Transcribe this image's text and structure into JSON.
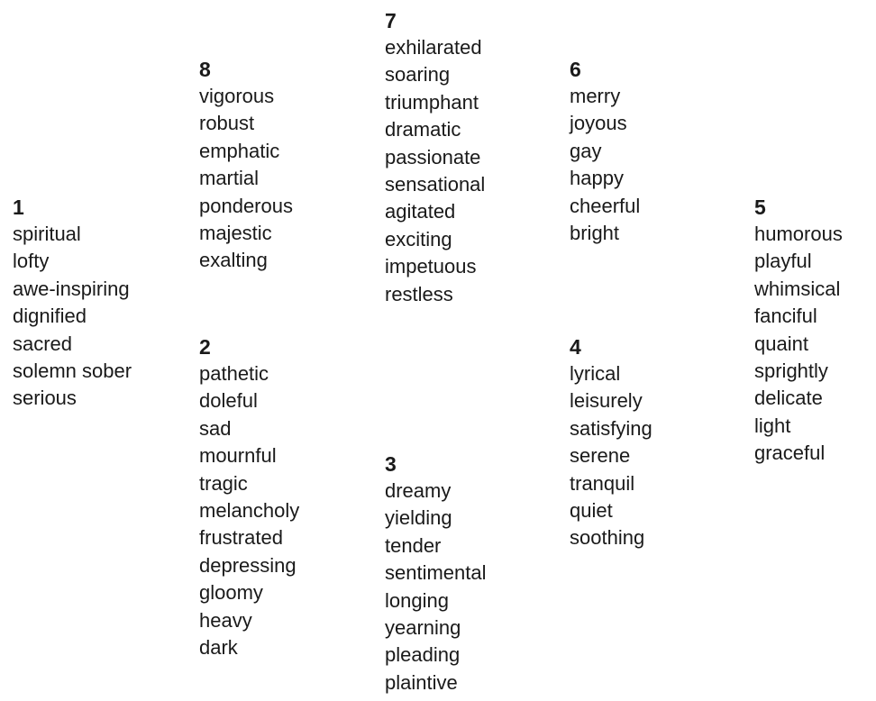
{
  "clusters": [
    {
      "id": "c1",
      "number": "1",
      "words": [
        "spiritual",
        "lofty",
        "awe-inspiring",
        "dignified",
        "sacred",
        "solemn sober",
        "serious"
      ]
    },
    {
      "id": "c8",
      "number": "8",
      "words": [
        "vigorous",
        "robust",
        "emphatic",
        "martial",
        "ponderous",
        "majestic",
        "exalting"
      ]
    },
    {
      "id": "c2",
      "number": "2",
      "words": [
        "pathetic",
        "doleful",
        "sad",
        "mournful",
        "tragic",
        "melancholy",
        "frustrated",
        "depressing",
        "gloomy",
        "heavy",
        "dark"
      ]
    },
    {
      "id": "c7",
      "number": "7",
      "words": [
        "exhilarated",
        "soaring",
        "triumphant",
        "dramatic",
        "passionate",
        "sensational",
        "agitated",
        "exciting",
        "impetuous",
        "restless"
      ]
    },
    {
      "id": "c3",
      "number": "3",
      "words": [
        "dreamy",
        "yielding",
        "tender",
        "sentimental",
        "longing",
        "yearning",
        "pleading",
        "plaintive"
      ]
    },
    {
      "id": "c6",
      "number": "6",
      "words": [
        "merry",
        "joyous",
        "gay",
        "happy",
        "cheerful",
        "bright"
      ]
    },
    {
      "id": "c4",
      "number": "4",
      "words": [
        "lyrical",
        "leisurely",
        "satisfying",
        "serene",
        "tranquil",
        "quiet",
        "soothing"
      ]
    },
    {
      "id": "c5",
      "number": "5",
      "words": [
        "humorous",
        "playful",
        "whimsical",
        "fanciful",
        "quaint",
        "sprightly",
        "delicate",
        "light",
        "graceful"
      ]
    }
  ]
}
